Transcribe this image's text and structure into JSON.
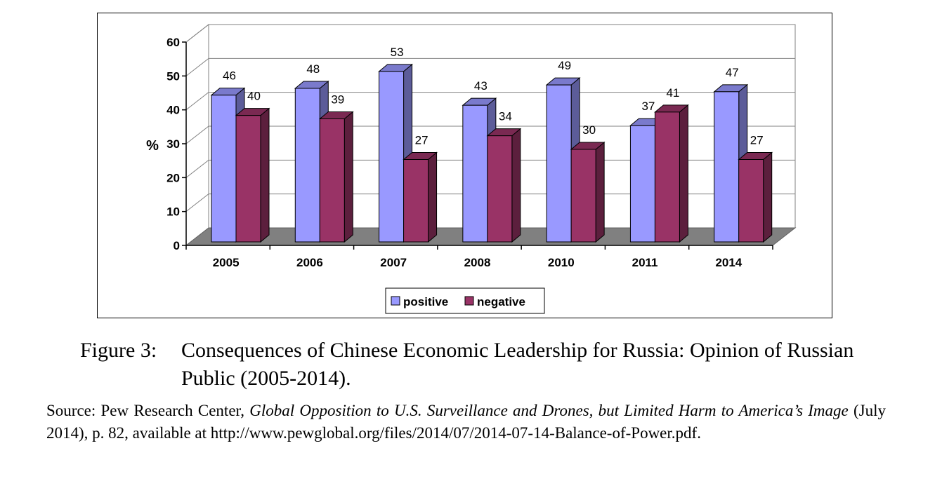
{
  "chart_data": {
    "type": "bar",
    "categories": [
      "2005",
      "2006",
      "2007",
      "2008",
      "2010",
      "2011",
      "2014"
    ],
    "series": [
      {
        "name": "positive",
        "values": [
          46,
          48,
          53,
          43,
          49,
          37,
          47
        ]
      },
      {
        "name": "negative",
        "values": [
          40,
          39,
          27,
          34,
          30,
          41,
          27
        ]
      }
    ],
    "ylabel": "%",
    "ylim": [
      0,
      60
    ],
    "yticks": [
      0,
      10,
      20,
      30,
      40,
      50,
      60
    ],
    "grid": true,
    "legend_position": "bottom-center",
    "colors": {
      "positive": "#9999ff",
      "positive_side": "#5c5c99",
      "positive_top": "#7a7acc",
      "negative": "#993366",
      "negative_side": "#5c1f3d",
      "negative_top": "#7a2952",
      "floor": "#808080",
      "wall": "#ffffff"
    }
  },
  "caption": {
    "label": "Figure 3:",
    "text": "Consequences of Chinese Economic Leadership for Russia: Opinion of Russian Public (2005-2014)."
  },
  "source": {
    "prefix": "Source: Pew Research Center, ",
    "title": "Global Opposition to U.S. Surveillance and Drones, but Limited Harm to America’s Image",
    "suffix": " (July 2014), p. 82, available at http://www.pewglobal.org/files/2014/07/2014-07-14-Balance-of-Power.pdf."
  }
}
